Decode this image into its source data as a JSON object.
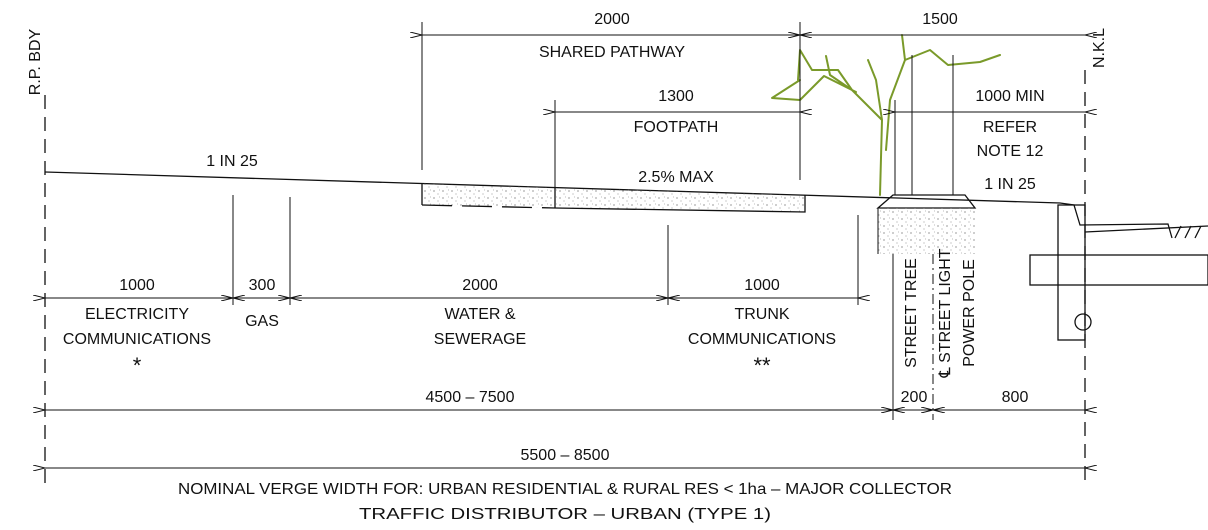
{
  "labels": {
    "rp_bdy": "R.P. BDY",
    "nkl": "N.K.L",
    "shared_width": "2000",
    "shared_name": "SHARED PATHWAY",
    "top_right_width": "1500",
    "footpath_width": "1300",
    "footpath_name": "FOOTPATH",
    "min_width": "1000 MIN",
    "refer": "REFER",
    "note": "NOTE 12",
    "slope_left": "1 IN 25",
    "slope_path": "2.5% MAX",
    "slope_right": "1 IN 25",
    "elec_width": "1000",
    "elec_line1": "ELECTRICITY",
    "elec_line2": "COMMUNICATIONS",
    "elec_mark": "*",
    "gas_width": "300",
    "gas_name": "GAS",
    "water_width": "2000",
    "water_line1": "WATER &",
    "water_line2": "SEWERAGE",
    "trunk_width": "1000",
    "trunk_line1": "TRUNK",
    "trunk_line2": "COMMUNICATIONS",
    "trunk_mark": "**",
    "street_tree": "STREET TREE",
    "street_light": "℄ STREET LIGHT",
    "power_pole": "POWER POLE",
    "services_width": "4500 – 7500",
    "tree_width": "200",
    "pole_width": "800",
    "total_width": "5500 – 8500",
    "caption_line1": "NOMINAL VERGE WIDTH FOR:  URBAN RESIDENTIAL & RURAL RES < 1ha – MAJOR COLLECTOR",
    "caption_line2": "TRAFFIC DISTRIBUTOR – URBAN (TYPE 1)"
  }
}
